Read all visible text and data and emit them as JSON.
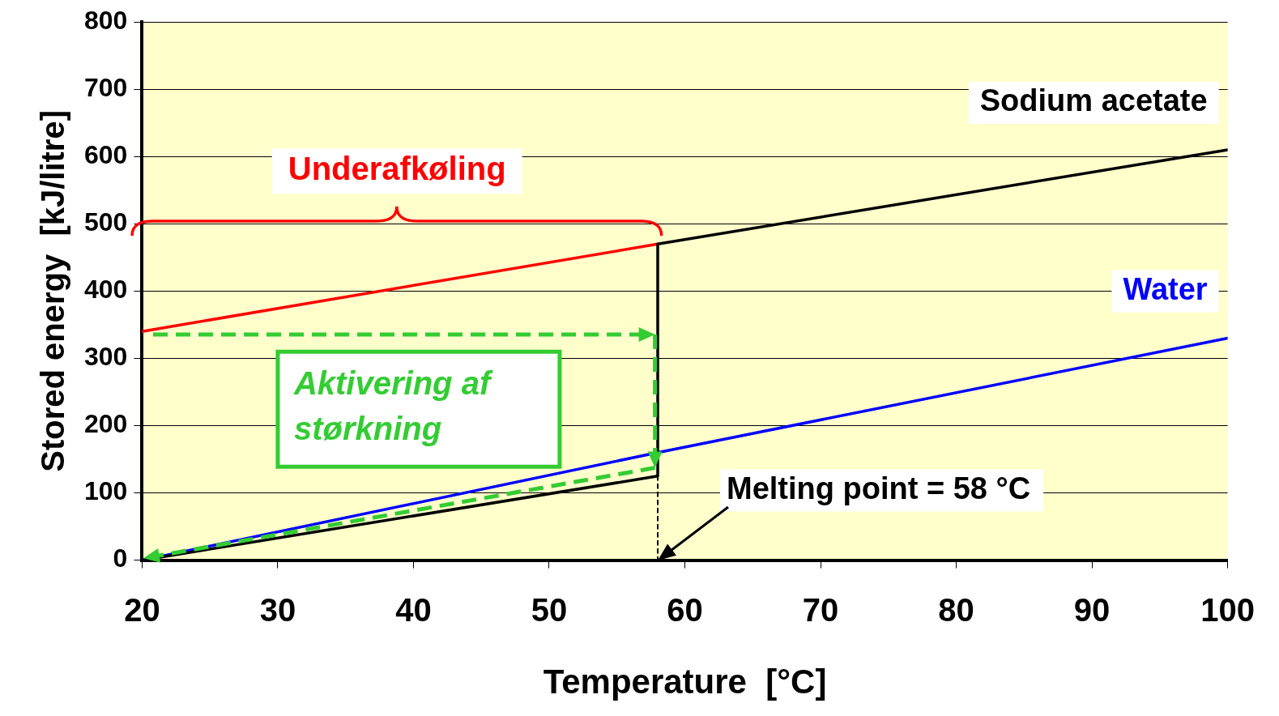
{
  "chart_data": {
    "type": "line",
    "xlabel": "Temperature  [°C]",
    "ylabel": "Stored energy  [kJ/litre]",
    "xlim": [
      20,
      100
    ],
    "xticks": [
      20,
      30,
      40,
      50,
      60,
      70,
      80,
      90,
      100
    ],
    "ylim": [
      0,
      800
    ],
    "yticks": [
      0,
      100,
      200,
      300,
      400,
      500,
      600,
      700,
      800
    ],
    "grid": "y",
    "legend": false,
    "marker": "none",
    "series": [
      {
        "name": "Sodium acetate",
        "color": "#000000",
        "x": [
          20,
          58,
          58,
          100
        ],
        "values": [
          0,
          125,
          470,
          610
        ],
        "line_style": "solid"
      },
      {
        "name": "Water",
        "color": "#0000ff",
        "x": [
          20,
          58,
          100
        ],
        "values": [
          0,
          160,
          330
        ],
        "line_style": "solid"
      },
      {
        "color": "#ff0000",
        "x": [
          20,
          58
        ],
        "values": [
          340,
          470
        ],
        "line_style": "solid"
      },
      {
        "color": "#000000",
        "x": [
          58,
          58
        ],
        "values": [
          125,
          0
        ],
        "line_style": "dotted"
      }
    ],
    "annotations": [
      "Underafkøling",
      "Aktivering af størkning",
      {
        "text": "Melting point = 58 °C",
        "x": 58,
        "y": 0
      }
    ]
  }
}
